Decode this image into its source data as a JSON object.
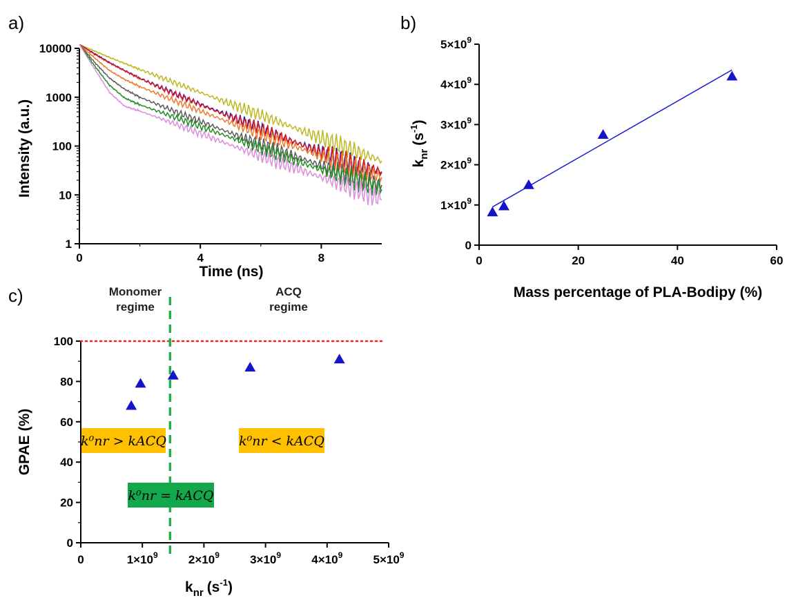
{
  "colors": {
    "axis": "#000000",
    "marker": "#1515c8",
    "fit_line": "#1a1ad0",
    "threshold_line": "#ff1a1a",
    "boundary_line": "#22b04c",
    "box_orange": "#ffc000",
    "box_green": "#14a84c"
  },
  "chart_data": [
    {
      "panel": "a)",
      "type": "line",
      "ylabel": "Intensity (a.u.)",
      "xlabel": "Time (ns)",
      "y_scale": "log",
      "xlim": [
        0,
        10
      ],
      "ylim": [
        1,
        10000
      ],
      "x_ticks": [
        "0",
        "4",
        "8"
      ],
      "x_tick_values": [
        0,
        4,
        8
      ],
      "y_ticks": [
        "1",
        "10",
        "100",
        "1000",
        "10000"
      ],
      "y_tick_values": [
        1,
        10,
        100,
        1000,
        10000
      ],
      "grid": false,
      "series": [
        {
          "color": "#bdb821",
          "x": [
            0,
            0.5,
            1,
            1.5,
            2,
            3,
            4,
            5,
            6,
            7,
            8,
            9,
            10
          ],
          "y": [
            12000,
            8800,
            6500,
            4900,
            3700,
            2150,
            1250,
            730,
            430,
            250,
            145,
            85,
            50
          ]
        },
        {
          "color": "#1515c8",
          "x": [
            0,
            0.5,
            1,
            1.5,
            2,
            3,
            4,
            5,
            6,
            7,
            8,
            9,
            10
          ],
          "y": [
            12000,
            7800,
            5100,
            3500,
            2450,
            1300,
            720,
            405,
            230,
            130,
            75,
            45,
            30
          ]
        },
        {
          "color": "#e01a1a",
          "x": [
            0,
            0.5,
            1,
            1.5,
            2,
            3,
            4,
            5,
            6,
            7,
            8,
            9,
            10
          ],
          "y": [
            12000,
            7600,
            5000,
            3450,
            2420,
            1280,
            700,
            395,
            225,
            128,
            74,
            44,
            29
          ]
        },
        {
          "color": "#f07828",
          "x": [
            0,
            0.5,
            1,
            1.5,
            2,
            3,
            4,
            5,
            6,
            7,
            8,
            9,
            10
          ],
          "y": [
            12000,
            6400,
            3500,
            2300,
            1650,
            920,
            520,
            300,
            175,
            105,
            62,
            38,
            23
          ]
        },
        {
          "color": "#5a5a5a",
          "x": [
            0,
            0.5,
            1,
            1.5,
            2,
            3,
            4,
            5,
            6,
            7,
            8,
            9,
            10
          ],
          "y": [
            12000,
            5200,
            2450,
            1450,
            1000,
            560,
            320,
            185,
            110,
            66,
            40,
            25,
            16
          ]
        },
        {
          "color": "#1e8c1e",
          "x": [
            0,
            0.5,
            1,
            1.5,
            2,
            3,
            4,
            5,
            6,
            7,
            8,
            9,
            10
          ],
          "y": [
            12000,
            4400,
            1750,
            960,
            700,
            420,
            250,
            150,
            90,
            54,
            33,
            21,
            13
          ]
        },
        {
          "color": "#dc8cdc",
          "x": [
            0,
            0.5,
            1,
            1.5,
            2,
            3,
            4,
            5,
            6,
            7,
            8,
            9,
            10
          ],
          "y": [
            12000,
            3800,
            1250,
            650,
            520,
            310,
            180,
            105,
            62,
            38,
            23,
            14,
            8
          ]
        }
      ]
    },
    {
      "panel": "b)",
      "type": "scatter",
      "ylabel_main": "k",
      "ylabel_sub": "nr",
      "ylabel_unit": "(s",
      "ylabel_sup": "-1",
      "ylabel_close": ")",
      "xlabel": "Mass percentage of PLA-Bodipy (%)",
      "xlim": [
        0,
        60
      ],
      "ylim": [
        0,
        5000000000
      ],
      "x_ticks": [
        "0",
        "20",
        "40",
        "60"
      ],
      "x_tick_values": [
        0,
        20,
        40,
        60
      ],
      "y_tick_values": [
        0,
        1000000000,
        2000000000,
        3000000000,
        4000000000,
        5000000000
      ],
      "y_tick_mantissa": [
        "0",
        "1×10",
        "2×10",
        "3×10",
        "4×10",
        "5×10"
      ],
      "y_tick_exponent": [
        "",
        "9",
        "9",
        "9",
        "9",
        "9"
      ],
      "grid": false,
      "points": {
        "x": [
          2.7,
          5,
          10,
          25,
          51
        ],
        "y": [
          820000000,
          970000000,
          1500000000,
          2750000000,
          4200000000
        ]
      },
      "fit_line": {
        "x": [
          2.7,
          51
        ],
        "y": [
          950000000,
          4360000000
        ]
      }
    },
    {
      "panel": "c)",
      "type": "scatter",
      "ylabel": "GPAE (%)",
      "xlabel_main": "k",
      "xlabel_sub": "nr",
      "xlabel_unit": "(s",
      "xlabel_sup": "-1",
      "xlabel_close": ")",
      "xlim": [
        0,
        5000000000
      ],
      "ylim": [
        0,
        100
      ],
      "y_ticks": [
        "0",
        "20",
        "40",
        "60",
        "80",
        "100"
      ],
      "y_tick_values": [
        0,
        20,
        40,
        60,
        80,
        100
      ],
      "x_tick_values": [
        0,
        1000000000,
        2000000000,
        3000000000,
        4000000000,
        5000000000
      ],
      "x_tick_mantissa": [
        "0",
        "1×10",
        "2×10",
        "3×10",
        "4×10",
        "5×10"
      ],
      "x_tick_exponent": [
        "",
        "9",
        "9",
        "9",
        "9",
        "9"
      ],
      "grid": false,
      "points": {
        "x": [
          820000000,
          970000000,
          1500000000,
          2750000000,
          4200000000
        ],
        "y": [
          68,
          79,
          83,
          87,
          91
        ]
      },
      "reference_lines": {
        "horizontal_y": 100,
        "vertical_x": 1450000000
      },
      "regions": [
        {
          "lines": [
            "Monomer",
            "regime"
          ]
        },
        {
          "lines": [
            "ACQ",
            "regime"
          ]
        }
      ],
      "boxes": [
        {
          "text": "k⁰nr > kACQ",
          "color": "orange"
        },
        {
          "text": "k⁰nr = kACQ",
          "color": "green"
        },
        {
          "text": "k⁰nr < kACQ",
          "color": "orange"
        }
      ]
    }
  ]
}
